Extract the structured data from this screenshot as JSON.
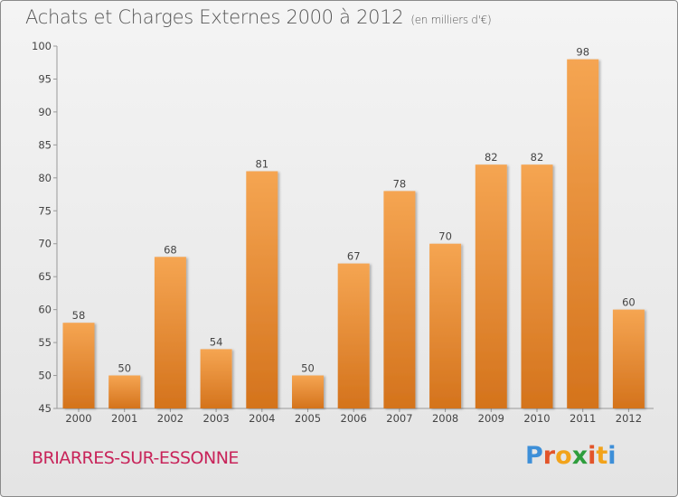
{
  "header": {
    "title": "Achats et Charges Externes 2000 à 2012",
    "unit": "(en milliers d'€)"
  },
  "footer": {
    "commune": "BRIARRES-SUR-ESSONNE",
    "logo_text": "Proxiti"
  },
  "colors": {
    "bar_light": "#f5a552",
    "bar_dark": "#d4731c",
    "commune_text": "#c8245a"
  },
  "chart_data": {
    "type": "bar",
    "title": "Achats et Charges Externes 2000 à 2012",
    "subtitle": "(en milliers d'€)",
    "categories": [
      "2000",
      "2001",
      "2002",
      "2003",
      "2004",
      "2005",
      "2006",
      "2007",
      "2008",
      "2009",
      "2010",
      "2011",
      "2012"
    ],
    "values": [
      58,
      50,
      68,
      54,
      81,
      50,
      67,
      78,
      70,
      82,
      82,
      98,
      60
    ],
    "ylim": [
      45,
      100
    ],
    "yticks": [
      45,
      50,
      55,
      60,
      65,
      70,
      75,
      80,
      85,
      90,
      95,
      100
    ],
    "grid": false,
    "legend": "none",
    "xlabel": "",
    "ylabel": ""
  }
}
